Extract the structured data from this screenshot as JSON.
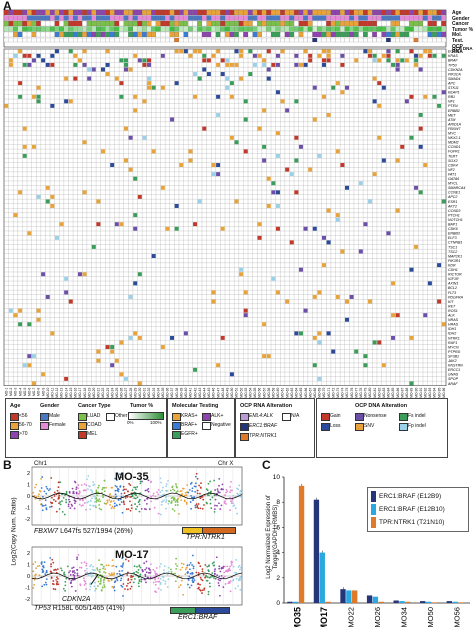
{
  "panel_labels": {
    "a": "A",
    "b": "B",
    "c": "C"
  },
  "panel_a": {
    "top_track_labels": [
      "Age",
      "Gender",
      "Cancer",
      "Tumor %",
      "Mol. Test.",
      "OCP RNA"
    ],
    "dna_label": "OCP DNA",
    "genes": [
      "EGFR",
      "KRAS",
      "BRAF",
      "TP53",
      "CDKN2A",
      "PIK3CA",
      "SMAD4",
      "APC",
      "STK11",
      "KEAP1",
      "RB1",
      "NF1",
      "PTEN",
      "ERBB2",
      "MET",
      "ATM",
      "ARID1A",
      "FBXW7",
      "MYC",
      "NKX2-1",
      "MDM2",
      "CCND1",
      "FGFR1",
      "TERT",
      "SOX2",
      "CDK4",
      "NF2",
      "FAT1",
      "GATA6",
      "MYCL",
      "SMARCA4",
      "CCNE1",
      "APC2",
      "ESR1",
      "AKT2",
      "CCND3",
      "PTCH1",
      "NOTCH1",
      "BAP1",
      "CDK6",
      "ERBB3",
      "ELF3",
      "CTNNB1",
      "TSC1",
      "TSC2",
      "MAP2K1",
      "PIK3R1",
      "KDR",
      "CDH1",
      "RICTOR",
      "IGF1R",
      "AXIN1",
      "BCL2",
      "FLT3",
      "PDGFRA",
      "KIT",
      "RET",
      "ROS1",
      "ALK",
      "NRAS",
      "HRAS",
      "IDH1",
      "IDH2",
      "NTRK1",
      "RAF1",
      "MYCN",
      "PTPRD",
      "SF3B1",
      "JAK2",
      "KNSTRN",
      "ERCC1",
      "GNAS",
      "SPOP",
      "ARAF"
    ],
    "sample_prefix": "MO-"
  },
  "legend": {
    "age": {
      "title": "Age",
      "items": [
        "<56",
        "56-70",
        ">70"
      ],
      "colors": [
        "#c0392b",
        "#e8a33a",
        "#8e44ad"
      ]
    },
    "gender": {
      "title": "Gender",
      "items": [
        "Male",
        "Female"
      ],
      "colors": [
        "#4a78c2",
        "#e58ad6"
      ]
    },
    "cancer": {
      "title": "Cancer Type",
      "items": [
        "LUAD",
        "COAD",
        "MEL",
        "Other"
      ],
      "colors": [
        "#7cbf4a",
        "#e8a33a",
        "#c0392b",
        "#ffffff"
      ]
    },
    "tumor": {
      "title": "Tumor %",
      "left": "0%",
      "right": "100%"
    },
    "molecular": {
      "title": "Molecular Testing",
      "items": [
        "KRAS+",
        "BRAF+",
        "EGFR+",
        "ALK+",
        "Negative"
      ],
      "colors": [
        "#e8a33a",
        "#3a7bd5",
        "#3a9e5a",
        "#8e44ad",
        "#ffffff"
      ]
    },
    "rna": {
      "title": "OCP RNA Alteration",
      "items": [
        "EML4:ALK",
        "N/A",
        "ERC1:BRAF",
        "TPR:NTRK1"
      ],
      "colors": [
        "#b79ad6",
        "#ffffff",
        "#25357a",
        "#e07a2b"
      ]
    },
    "dna": {
      "title": "OCP DNA Alteration",
      "items": [
        "Gain",
        "Loss",
        "SNV",
        "Nonsense",
        "Fs indel",
        "Fp indel"
      ],
      "colors": [
        "#c0392b",
        "#2c4a9a",
        "#e8a33a",
        "#6b4fa8",
        "#3a9e5a",
        "#9ad0e8"
      ]
    }
  },
  "panel_b": {
    "ylabel": "Log2(Copy Num. Ratio)",
    "chr1": "Chr1",
    "chrx": "Chr X",
    "top": {
      "sample": "MO-35",
      "mutation_gene": "FBXW7",
      "mutation_detail": "L647fs 527/1994 (26%)",
      "fusion": "TPR:NTRK1",
      "yticks": [
        "2",
        "1",
        "0",
        "-1",
        "-2"
      ]
    },
    "bottom": {
      "sample": "MO-17",
      "cdkn": "CDKN2A",
      "mutation_gene": "TP53",
      "mutation_detail": "R158L 605/1465 (41%)",
      "fusion": "ERC1:BRAF",
      "yticks": [
        "2",
        "1",
        "0",
        "-1",
        "-2"
      ]
    }
  },
  "chart_data": {
    "type": "bar",
    "ylabel": "Log2 Normalized Expression of Target/(GAPDH+RMBS)",
    "categories": [
      "MO35",
      "MO17",
      "MO22",
      "MO26",
      "MO34",
      "MO50",
      "MO56"
    ],
    "bold_categories": [
      "MO35",
      "MO17"
    ],
    "ylim": [
      0,
      10
    ],
    "yticks": [
      "10",
      "8",
      "6",
      "4",
      "2",
      "0"
    ],
    "series": [
      {
        "name": "ERC1:BRAF (E12B9)",
        "color": "#25357a",
        "values": [
          0.1,
          8.2,
          1.1,
          0.6,
          0.2,
          0.15,
          0.15
        ]
      },
      {
        "name": "ERC1:BRAF (E12B10)",
        "color": "#2aa8e0",
        "values": [
          0.1,
          4.0,
          1.0,
          0.5,
          0.15,
          0.1,
          0.1
        ]
      },
      {
        "name": "TPR:NTRK1 (T21N10)",
        "color": "#e07a2b",
        "values": [
          9.3,
          0.1,
          1.0,
          0.1,
          0.1,
          0.05,
          0.05
        ]
      }
    ]
  }
}
